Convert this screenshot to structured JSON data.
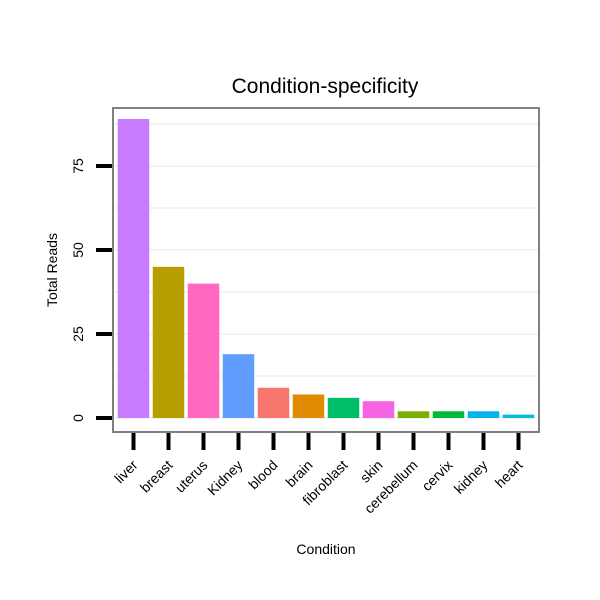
{
  "chart_data": {
    "type": "bar",
    "title": "Condition-specificity",
    "xlabel": "Condition",
    "ylabel": "Total Reads",
    "categories": [
      "liver",
      "breast",
      "uterus",
      "Kidney",
      "blood",
      "brain",
      "fibroblast",
      "skin",
      "cerebellum",
      "cervix",
      "kidney",
      "heart"
    ],
    "values": [
      89,
      45,
      40,
      19,
      9,
      7,
      6,
      5,
      2,
      2,
      2,
      1
    ],
    "colors": [
      "#C77CFF",
      "#B79F00",
      "#FF68BE",
      "#619CFF",
      "#F8766D",
      "#E08B00",
      "#00BE67",
      "#F564E3",
      "#7CAE00",
      "#00BA38",
      "#00B4EF",
      "#00BCD8"
    ],
    "yticks": [
      0,
      25,
      50,
      75
    ],
    "ylim": [
      -4.5,
      94
    ],
    "grid": true,
    "legend": "none"
  }
}
